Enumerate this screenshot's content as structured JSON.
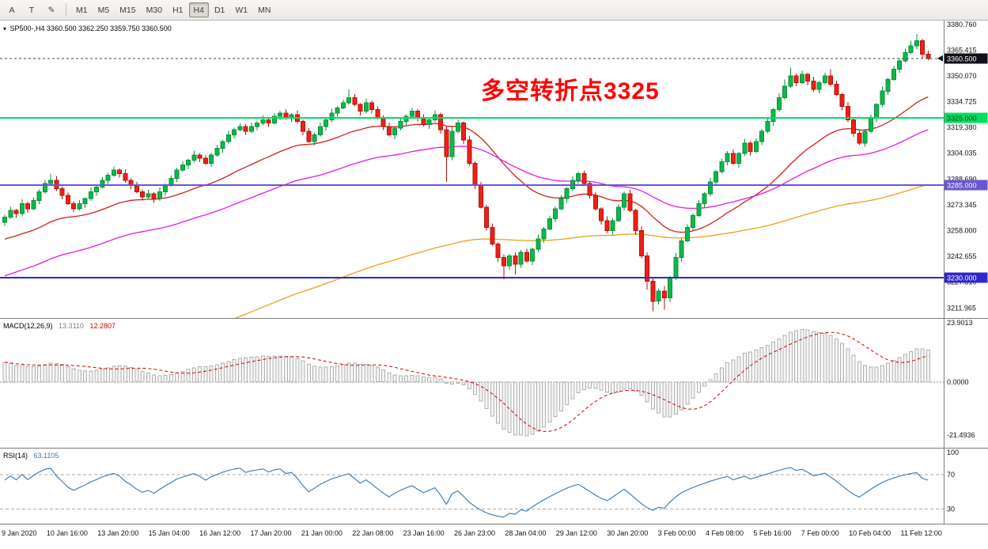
{
  "toolbar": {
    "tools": [
      {
        "name": "font-tool",
        "glyph": "A"
      },
      {
        "name": "text-tool",
        "glyph": "T"
      },
      {
        "name": "draw-tool",
        "glyph": "✎"
      }
    ],
    "timeframes": [
      "M1",
      "M5",
      "M15",
      "M30",
      "H1",
      "H4",
      "D1",
      "W1",
      "MN"
    ],
    "active_timeframe": "H4"
  },
  "price_pane": {
    "symbol_line": "SP500-,H4 3360.500 3362.250 3359.750 3360.500",
    "annotation": {
      "text": "多空转折点3325",
      "color": "#ff0000"
    },
    "range": {
      "min": 3206,
      "max": 3383
    },
    "scale_labels": [
      "3380.760",
      "3365.415",
      "3350.070",
      "3334.725",
      "3319.380",
      "3304.035",
      "3288.690",
      "3273.345",
      "3258.000",
      "3242.655",
      "3227.310",
      "3211.965"
    ],
    "hlines": [
      {
        "value": 3325.0,
        "label": "3325.000",
        "color": "#00df5f",
        "text_color": "#00331a"
      },
      {
        "value": 3285.0,
        "label": "3285.000",
        "color": "#6a55cf",
        "text_color": "#ffffff"
      },
      {
        "value": 3230.0,
        "label": "3230.000",
        "color": "#3126c9",
        "text_color": "#ffffff"
      }
    ],
    "current_price": {
      "value": 3360.5,
      "label": "3360.500",
      "bg": "#11111b",
      "text_color": "#ffffff"
    },
    "ma_lines": [
      {
        "period": 30,
        "seed": 3252,
        "color": "#d02020"
      },
      {
        "period": 65,
        "seed": 3230,
        "color": "#e619e6"
      },
      {
        "period": 160,
        "seed": 3150,
        "color": "#eba21a"
      }
    ]
  },
  "macd_pane": {
    "label": "MACD(12,26,9)",
    "value1": "13.3110",
    "value2": "12.2807",
    "range": {
      "min": -26.6,
      "max": 25.5
    },
    "scale_labels": [
      {
        "text": "23.9013",
        "value": 23.9013
      },
      {
        "text": "0.0000",
        "value": 0
      },
      {
        "text": "-21.4936",
        "value": -21.4936
      }
    ],
    "params": {
      "fast": 12,
      "slow": 26,
      "signal": 9,
      "seed_split": 4.5,
      "hist_fill": "#f4f4f4",
      "hist_stroke": "#b0b0b0",
      "signal_color": "#d40000"
    }
  },
  "rsi_pane": {
    "label": "RSI(14)",
    "value": "63.1105",
    "range": {
      "min": 13,
      "max": 100
    },
    "scale_labels": [
      {
        "text": "100",
        "value": 100
      },
      {
        "text": "70",
        "value": 70
      },
      {
        "text": "30",
        "value": 30
      }
    ],
    "params": {
      "period": 14,
      "seed_gain": 1.3,
      "seed_loss": 0.75,
      "color": "#3579b1",
      "levels": [
        70,
        30
      ]
    }
  },
  "time_axis": {
    "labels": [
      "9 Jan 2020",
      "10 Jan 16:00",
      "13 Jan 20:00",
      "15 Jan 04:00",
      "16 Jan 12:00",
      "17 Jan 20:00",
      "21 Jan 00:00",
      "22 Jan 08:00",
      "23 Jan 16:00",
      "26 Jan 23:00",
      "28 Jan 04:00",
      "29 Jan 12:00",
      "30 Jan 20:00",
      "3 Feb 00:00",
      "4 Feb 08:00",
      "5 Feb 16:00",
      "7 Feb 00:00",
      "10 Feb 04:00",
      "11 Feb 12:00"
    ]
  },
  "chart_data": {
    "type": "candlestick",
    "symbol": "SP500-",
    "timeframe": "H4",
    "last_ohlc": {
      "open": "3360.500",
      "high": "3362.250",
      "low": "3359.750",
      "close": "3360.500"
    },
    "first_open": 3263,
    "closes": [
      3266,
      3270,
      3268,
      3274,
      3271,
      3276,
      3281,
      3286,
      3288,
      3283,
      3279,
      3274,
      3271,
      3274,
      3277,
      3281,
      3284,
      3288,
      3291,
      3294,
      3292,
      3288,
      3285,
      3281,
      3278,
      3280,
      3277,
      3281,
      3285,
      3289,
      3294,
      3297,
      3300,
      3303,
      3301,
      3298,
      3303,
      3307,
      3311,
      3315,
      3318,
      3320,
      3317,
      3320,
      3322,
      3324,
      3322,
      3326,
      3328,
      3325,
      3327,
      3323,
      3317,
      3311,
      3315,
      3320,
      3324,
      3328,
      3331,
      3334,
      3337,
      3333,
      3329,
      3334,
      3330,
      3325,
      3320,
      3315,
      3319,
      3323,
      3326,
      3329,
      3325,
      3321,
      3324,
      3327,
      3318,
      3302,
      3317,
      3322,
      3312,
      3298,
      3285,
      3272,
      3260,
      3250,
      3242,
      3237,
      3243,
      3238,
      3245,
      3240,
      3247,
      3253,
      3259,
      3265,
      3271,
      3277,
      3283,
      3288,
      3292,
      3286,
      3279,
      3271,
      3264,
      3258,
      3264,
      3272,
      3280,
      3270,
      3258,
      3243,
      3228,
      3216,
      3222,
      3218,
      3230,
      3242,
      3252,
      3260,
      3267,
      3274,
      3280,
      3287,
      3293,
      3299,
      3304,
      3298,
      3304,
      3310,
      3305,
      3311,
      3317,
      3323,
      3330,
      3337,
      3344,
      3350,
      3346,
      3351,
      3347,
      3342,
      3346,
      3350,
      3345,
      3339,
      3332,
      3324,
      3316,
      3310,
      3317,
      3325,
      3333,
      3341,
      3348,
      3354,
      3359,
      3364,
      3368,
      3371,
      3363,
      3360.5
    ],
    "wick_top_pattern": [
      1.4,
      2.2,
      0.9,
      2.6,
      1.2,
      1.9
    ],
    "wick_bottom_pattern": [
      2.1,
      1.0,
      2.5,
      1.4,
      2.3,
      0.8
    ],
    "long_wicks": {
      "8": [
        4,
        1
      ],
      "60": [
        5,
        1
      ],
      "77": [
        2,
        15
      ],
      "78": [
        3,
        2
      ],
      "87": [
        2,
        8
      ],
      "89": [
        2,
        6
      ],
      "112": [
        2,
        5
      ],
      "113": [
        2,
        6
      ],
      "115": [
        3,
        7
      ],
      "136": [
        4,
        1
      ],
      "137": [
        5,
        1
      ],
      "144": [
        4,
        1
      ],
      "158": [
        3,
        1
      ],
      "159": [
        4,
        2
      ],
      "161": [
        2,
        1
      ]
    },
    "up_fill": "#0db84b",
    "up_stroke": "#089038",
    "down_fill": "#ef2016",
    "down_stroke": "#b4120b"
  }
}
